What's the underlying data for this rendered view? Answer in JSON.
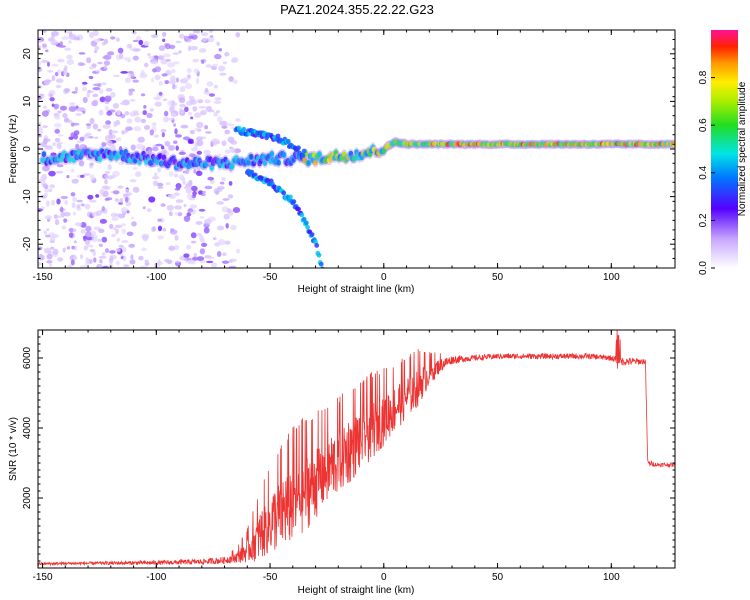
{
  "title": "PAZ1.2024.355.22.22.G23",
  "chart_data": [
    {
      "type": "heatmap",
      "xlabel": "Height of straight line (km)",
      "ylabel": "Frequency (Hz)",
      "xlim": [
        -152,
        128
      ],
      "ylim": [
        -25,
        25
      ],
      "xticks": [
        -150,
        -100,
        -50,
        0,
        50,
        100
      ],
      "yticks": [
        -20,
        -10,
        0,
        10,
        20
      ],
      "xticklabels": [
        "-150",
        "-100",
        "-50",
        "0",
        "50",
        "100"
      ],
      "yticklabels": [
        "-20",
        "-10",
        "0",
        "10",
        "20"
      ],
      "description_values": {
        "carrier_track": [
          {
            "x": -150,
            "y": -2
          },
          {
            "x": -120,
            "y": -1
          },
          {
            "x": -90,
            "y": -3
          },
          {
            "x": -70,
            "y": -3
          },
          {
            "x": -50,
            "y": -2
          },
          {
            "x": -30,
            "y": -2
          },
          {
            "x": -10,
            "y": -1
          },
          {
            "x": 0,
            "y": 0
          },
          {
            "x": 5,
            "y": 1.5
          },
          {
            "x": 10,
            "y": 1
          },
          {
            "x": 30,
            "y": 1
          },
          {
            "x": 60,
            "y": 1
          },
          {
            "x": 100,
            "y": 1
          },
          {
            "x": 128,
            "y": 1
          }
        ],
        "upper_branch": [
          {
            "x": -65,
            "y": 4
          },
          {
            "x": -55,
            "y": 3
          },
          {
            "x": -45,
            "y": 2
          },
          {
            "x": -35,
            "y": -1
          }
        ],
        "lower_branch": [
          {
            "x": -60,
            "y": -5
          },
          {
            "x": -50,
            "y": -7
          },
          {
            "x": -40,
            "y": -11
          },
          {
            "x": -35,
            "y": -15
          },
          {
            "x": -30,
            "y": -20
          },
          {
            "x": -27,
            "y": -25
          }
        ]
      },
      "colorbar": {
        "label": "Normalized spectral amplitude",
        "range": [
          0,
          1
        ],
        "ticks": [
          0.0,
          0.2,
          0.4,
          0.6,
          0.8
        ],
        "ticklabels": [
          "0.0",
          "0.2",
          "0.4",
          "0.6",
          "0.8"
        ]
      }
    },
    {
      "type": "line",
      "xlabel": "Height of straight line (km)",
      "ylabel": "SNR (10 * v/v)",
      "xlim": [
        -152,
        128
      ],
      "ylim": [
        0,
        6800
      ],
      "xticks": [
        -150,
        -100,
        -50,
        0,
        50,
        100
      ],
      "yticks": [
        2000,
        4000,
        6000
      ],
      "xticklabels": [
        "-150",
        "-100",
        "-50",
        "0",
        "50",
        "100"
      ],
      "yticklabels": [
        "2000",
        "4000",
        "6000"
      ],
      "color": "#ee3333",
      "series": [
        {
          "x": [
            -152,
            -140,
            -120,
            -100,
            -80,
            -70,
            -65,
            -60,
            -55,
            -50,
            -45,
            -40,
            -35,
            -30,
            -25,
            -20,
            -15,
            -10,
            -5,
            0,
            5,
            10,
            15,
            20,
            25,
            30,
            40,
            50,
            60,
            70,
            80,
            90,
            100,
            105,
            110,
            115,
            116,
            120,
            128
          ],
          "y": [
            120,
            130,
            140,
            150,
            180,
            220,
            300,
            500,
            900,
            1300,
            1600,
            1900,
            2200,
            2500,
            2800,
            3100,
            3400,
            3700,
            4000,
            4300,
            4600,
            4900,
            5200,
            5550,
            5800,
            5950,
            6000,
            6050,
            6050,
            6050,
            6050,
            6050,
            6000,
            5900,
            5900,
            5900,
            3000,
            2950,
            2950
          ],
          "noise": [
            40,
            40,
            50,
            60,
            80,
            100,
            150,
            350,
            700,
            900,
            1100,
            1200,
            1200,
            1100,
            1000,
            1000,
            1000,
            900,
            900,
            800,
            700,
            650,
            600,
            350,
            200,
            120,
            80,
            80,
            80,
            80,
            80,
            80,
            80,
            120,
            100,
            80,
            80,
            60,
            60
          ]
        }
      ]
    }
  ]
}
